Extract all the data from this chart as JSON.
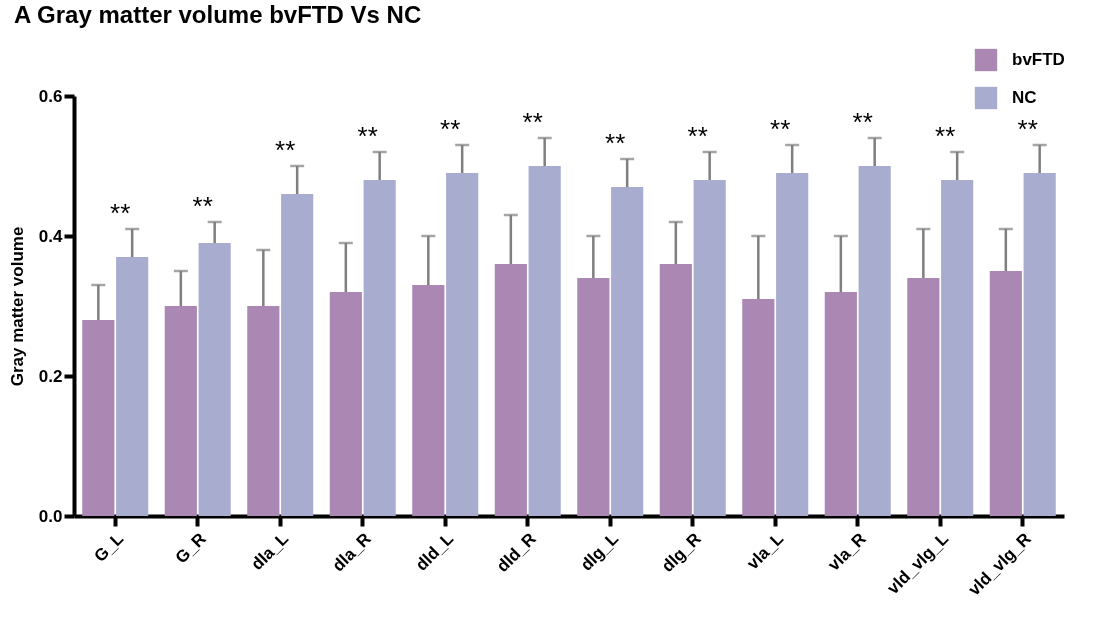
{
  "chart_data": {
    "type": "bar",
    "title": "A Gray matter volume bvFTD Vs NC",
    "ylabel": "Gray matter volume",
    "categories": [
      "G_L",
      "G_R",
      "dla_L",
      "dla_R",
      "dld_L",
      "dld_R",
      "dlg_L",
      "dlg_R",
      "vla_L",
      "vla_R",
      "vld_vlg_L",
      "vld_vlg_R"
    ],
    "series": [
      {
        "name": "bvFTD",
        "color": "#ab87b4",
        "values": [
          0.28,
          0.3,
          0.3,
          0.32,
          0.33,
          0.36,
          0.34,
          0.36,
          0.31,
          0.32,
          0.34,
          0.35
        ],
        "errors": [
          [
            0.28,
            0.33
          ],
          [
            0.3,
            0.35
          ],
          [
            0.3,
            0.38
          ],
          [
            0.32,
            0.39
          ],
          [
            0.33,
            0.4
          ],
          [
            0.36,
            0.43
          ],
          [
            0.34,
            0.4
          ],
          [
            0.36,
            0.42
          ],
          [
            0.31,
            0.4
          ],
          [
            0.32,
            0.4
          ],
          [
            0.34,
            0.41
          ],
          [
            0.35,
            0.41
          ]
        ]
      },
      {
        "name": "NC",
        "color": "#a8accf",
        "values": [
          0.37,
          0.39,
          0.46,
          0.48,
          0.49,
          0.5,
          0.47,
          0.48,
          0.49,
          0.5,
          0.48,
          0.49
        ],
        "errors": [
          [
            0.37,
            0.41
          ],
          [
            0.39,
            0.42
          ],
          [
            0.46,
            0.5
          ],
          [
            0.48,
            0.52
          ],
          [
            0.49,
            0.53
          ],
          [
            0.5,
            0.54
          ],
          [
            0.47,
            0.51
          ],
          [
            0.48,
            0.52
          ],
          [
            0.49,
            0.53
          ],
          [
            0.5,
            0.54
          ],
          [
            0.48,
            0.52
          ],
          [
            0.49,
            0.53
          ]
        ]
      }
    ],
    "annotations": [
      "**",
      "**",
      "**",
      "**",
      "**",
      "**",
      "**",
      "**",
      "**",
      "**",
      "**",
      "**"
    ],
    "ylim": [
      0,
      0.6
    ],
    "yticks": [
      {
        "value": 0,
        "label": "0.0"
      },
      0.2,
      0.4,
      0.6
    ],
    "legend": "top right",
    "grid": false
  }
}
